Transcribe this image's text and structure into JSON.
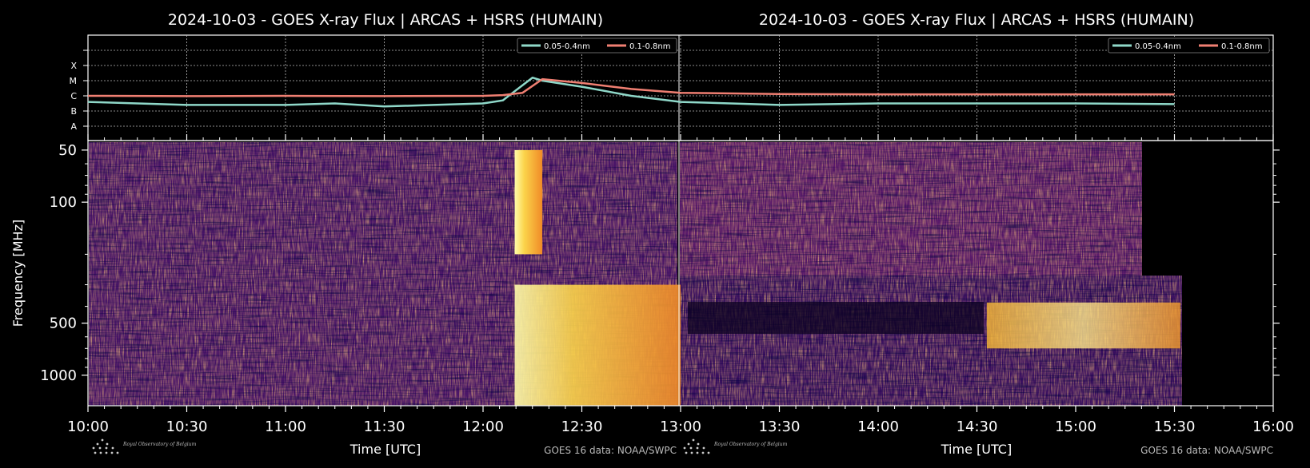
{
  "colors": {
    "xray_short": "#8fd8c9",
    "xray_long": "#f07f72",
    "frame": "#ffffff",
    "background": "#000000"
  },
  "panels": [
    {
      "title": "2024-10-03 - GOES X-ray Flux | ARCAS + HSRS (HUMAIN)",
      "xlabel": "Time [UTC]",
      "credit": "GOES 16 data: NOAA/SWPC",
      "logo": "Royal Observatory of Belgium",
      "x_ticks": [
        "10:00",
        "10:30",
        "11:00",
        "11:30",
        "12:00",
        "12:30"
      ]
    },
    {
      "title": "2024-10-03 - GOES X-ray Flux | ARCAS + HSRS (HUMAIN)",
      "xlabel": "Time [UTC]",
      "credit": "GOES 16 data: NOAA/SWPC",
      "logo": "Royal Observatory of Belgium",
      "x_ticks": [
        "13:00",
        "13:30",
        "14:00",
        "14:30",
        "15:00",
        "15:30",
        "16:00"
      ]
    }
  ],
  "chart_data": [
    {
      "type": "line",
      "title": "2024-10-03 - GOES X-ray Flux | ARCAS + HSRS (HUMAIN)",
      "x_unit": "hours UTC",
      "xlim": [
        10,
        16
      ],
      "flare_class_labels": [
        "A",
        "B",
        "C",
        "M",
        "X"
      ],
      "ylim_class": [
        "A",
        "X"
      ],
      "grid": true,
      "legend": "top-right",
      "series": [
        {
          "name": "0.05-0.4nm",
          "x": [
            10.0,
            10.5,
            11.0,
            11.25,
            11.5,
            11.75,
            12.0,
            12.1,
            12.25,
            12.3,
            12.5,
            12.75,
            13.0,
            13.5,
            14.0,
            14.5,
            15.0,
            15.5
          ],
          "y": [
            5.6,
            5.4,
            5.4,
            5.5,
            5.3,
            5.4,
            5.5,
            5.7,
            7.2,
            7.0,
            6.6,
            6.0,
            5.6,
            5.4,
            5.5,
            5.5,
            5.5,
            5.45
          ]
        },
        {
          "name": "0.1-0.8nm",
          "x": [
            10.0,
            10.5,
            11.0,
            11.5,
            12.0,
            12.1,
            12.2,
            12.3,
            12.5,
            12.75,
            13.0,
            13.5,
            14.0,
            14.5,
            15.0,
            15.5
          ],
          "y": [
            6.0,
            5.98,
            6.0,
            5.98,
            6.0,
            6.05,
            6.2,
            7.1,
            6.85,
            6.45,
            6.2,
            6.12,
            6.1,
            6.1,
            6.1,
            6.1
          ]
        }
      ]
    },
    {
      "type": "heatmap",
      "ylabel": "Frequency [MHz]",
      "xlabel": "Time [UTC]",
      "y_scale": "log",
      "y_ticks": [
        50,
        100,
        500,
        1000
      ],
      "ylim": [
        45,
        1500
      ],
      "xlim": [
        10,
        16
      ],
      "x_ticks": [
        "10:00",
        "10:30",
        "11:00",
        "11:30",
        "12:00",
        "12:30",
        "13:00",
        "13:30",
        "14:00",
        "14:30",
        "15:00",
        "15:30",
        "16:00"
      ],
      "colormap": "inferno",
      "bursts": [
        {
          "start": 12.16,
          "end": 12.3,
          "fmin": 50,
          "fmax": 200,
          "intensity": 1.0
        },
        {
          "start": 12.16,
          "end": 13.0,
          "fmin": 300,
          "fmax": 1500,
          "intensity": 0.9
        },
        {
          "start": 14.55,
          "end": 15.53,
          "fmin": 380,
          "fmax": 700,
          "intensity": 0.8
        }
      ]
    }
  ]
}
